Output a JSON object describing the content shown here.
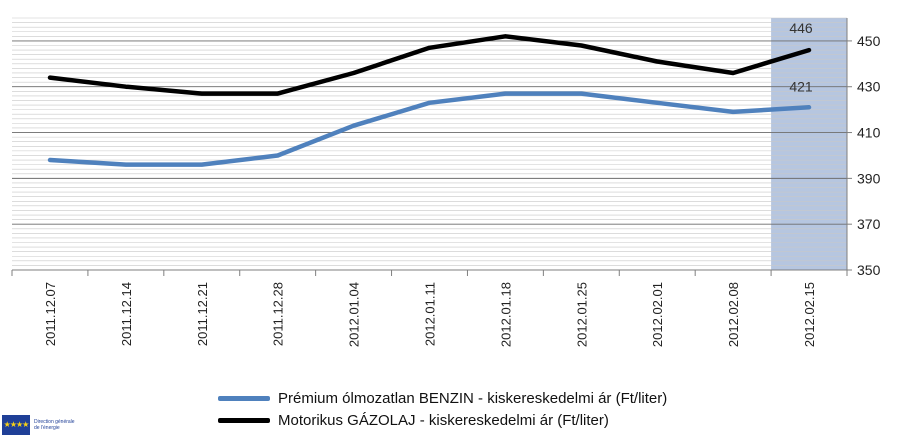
{
  "chart_data": {
    "type": "line",
    "categories": [
      "2011.12.07",
      "2011.12.14",
      "2011.12.21",
      "2011.12.28",
      "2012.01.04",
      "2012.01.11",
      "2012.01.18",
      "2012.01.25",
      "2012.02.01",
      "2012.02.08",
      "2012.02.15"
    ],
    "series": [
      {
        "name": "Prémium ólmozatlan BENZIN - kiskereskedelmi ár (Ft/liter)",
        "color": "#4f81bd",
        "values": [
          398,
          396,
          396,
          400,
          413,
          423,
          427,
          427,
          423,
          419,
          421
        ]
      },
      {
        "name": "Motorikus GÁZOLAJ - kiskereskedelmi ár (Ft/liter)",
        "color": "#000000",
        "values": [
          434,
          430,
          427,
          427,
          436,
          447,
          452,
          448,
          441,
          436,
          446
        ]
      }
    ],
    "ylim": [
      350,
      460
    ],
    "yticks": [
      "350",
      "370",
      "390",
      "410",
      "430",
      "450"
    ],
    "grid": true,
    "highlight_category": "2012.02.15",
    "highlight_color": "#9db3d6",
    "annotations": [
      "446",
      "421"
    ],
    "legend_placement": "bottom"
  },
  "logo": {
    "stars": "★★★★",
    "text_line1": "Direction générale",
    "text_line2": "de l'énergie"
  }
}
